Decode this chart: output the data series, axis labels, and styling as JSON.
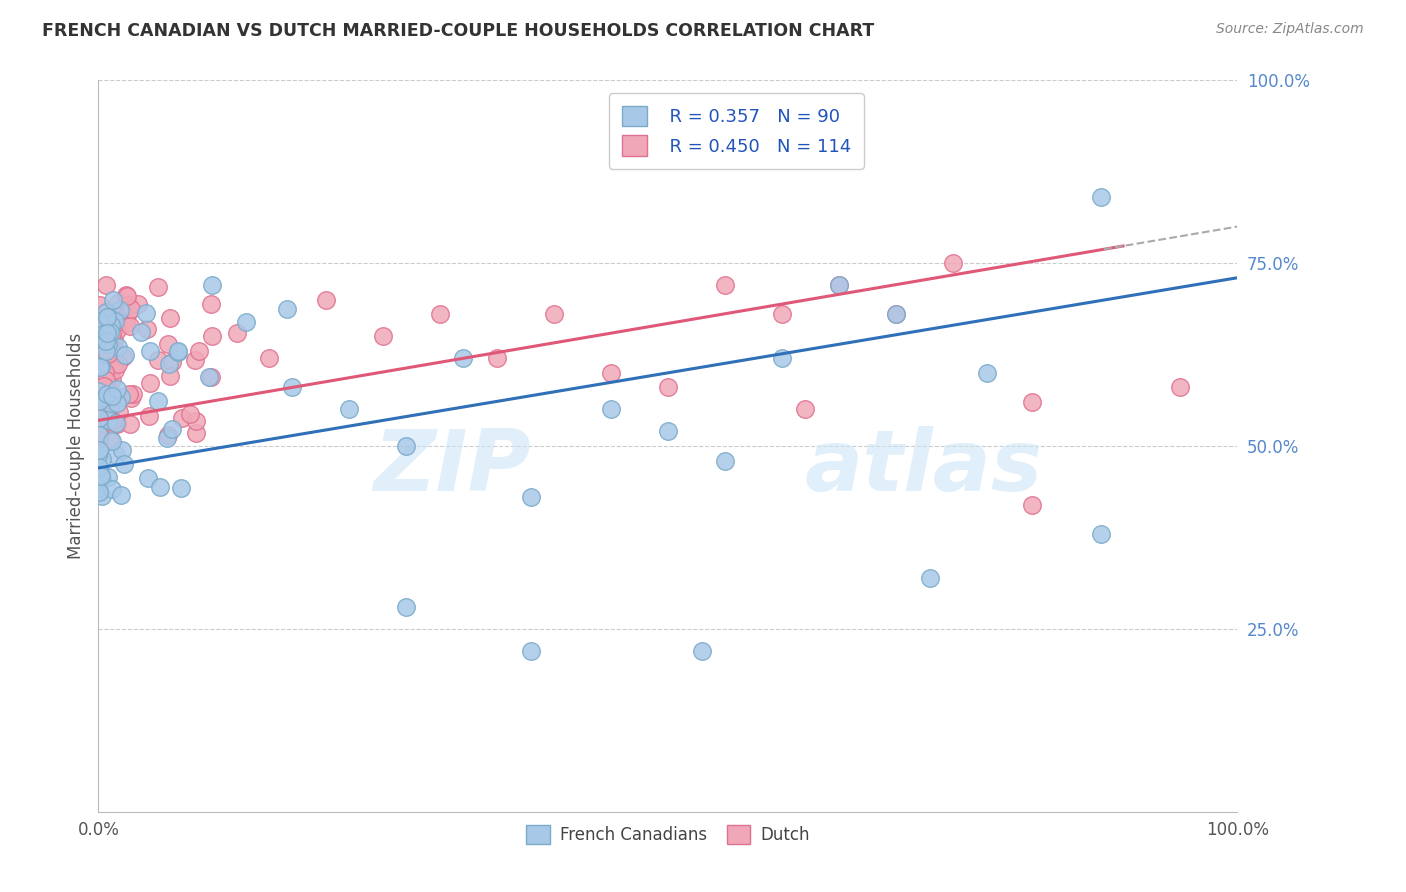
{
  "title": "FRENCH CANADIAN VS DUTCH MARRIED-COUPLE HOUSEHOLDS CORRELATION CHART",
  "source": "Source: ZipAtlas.com",
  "ylabel": "Married-couple Households",
  "xlim": [
    0.0,
    1.0
  ],
  "ylim": [
    0.0,
    1.0
  ],
  "xtick_labels": [
    "0.0%",
    "100.0%"
  ],
  "ytick_labels": [
    "25.0%",
    "50.0%",
    "75.0%",
    "100.0%"
  ],
  "ytick_positions": [
    0.25,
    0.5,
    0.75,
    1.0
  ],
  "legend_r": [
    "R = 0.357",
    "R = 0.450"
  ],
  "legend_n": [
    "N = 90",
    "N = 114"
  ],
  "blue_color": "#a8c8e8",
  "pink_color": "#f0a8b8",
  "blue_edge_color": "#7aaac8",
  "pink_edge_color": "#e07090",
  "blue_line_color": "#3070b8",
  "pink_line_color": "#e05878",
  "ytick_color": "#5588cc",
  "title_color": "#333333",
  "source_color": "#888888",
  "watermark_color": "#cce5f5",
  "grid_color": "#cccccc"
}
